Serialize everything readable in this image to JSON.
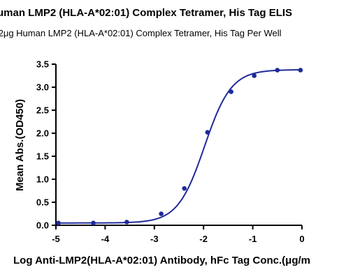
{
  "chart_data": {
    "type": "scatter",
    "title": "uman LMP2 (HLA-A*02:01) Complex Tetramer, His Tag ELIS",
    "subtitle": ".2μg Human LMP2 (HLA-A*02:01) Complex Tetramer, His Tag Per Well",
    "xlabel": "Log Anti-LMP2(HLA-A*02:01) Antibody, hFc Tag Conc.(μg/m",
    "ylabel": "Mean Abs.(OD450)",
    "xlim": [
      -5,
      0
    ],
    "ylim": [
      0,
      3.5
    ],
    "xticks": [
      -5,
      -4,
      -3,
      -2,
      -1,
      0
    ],
    "yticks": [
      0.0,
      0.5,
      1.0,
      1.5,
      2.0,
      2.5,
      3.0,
      3.5
    ],
    "xtick_labels": [
      "-5",
      "-4",
      "-3",
      "-2",
      "-1",
      "0"
    ],
    "ytick_labels": [
      "0.0",
      "0.5",
      "1.0",
      "1.5",
      "2.0",
      "2.5",
      "3.0",
      "3.5"
    ],
    "grid": false,
    "color": "#1f2a99",
    "points": {
      "x": [
        -4.95,
        -4.24,
        -3.56,
        -2.86,
        -2.39,
        -1.92,
        -1.44,
        -0.97,
        -0.5,
        -0.03
      ],
      "y": [
        0.05,
        0.05,
        0.07,
        0.25,
        0.8,
        2.02,
        2.9,
        3.25,
        3.37,
        3.37
      ]
    },
    "fit": {
      "model": "4PL",
      "bottom": 0.05,
      "top": 3.38,
      "log_ec50": -1.98,
      "hill": 1.6
    }
  }
}
